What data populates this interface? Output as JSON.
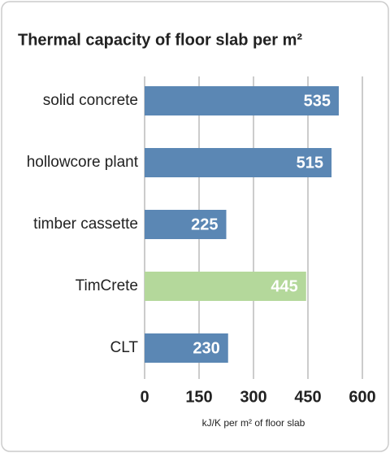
{
  "chart_data": {
    "type": "hbar",
    "title": "Thermal capacity of floor slab per m²",
    "categories": [
      "solid concrete",
      "hollowcore plant",
      "timber cassette",
      "TimCrete",
      "CLT"
    ],
    "values": [
      535,
      515,
      225,
      445,
      230
    ],
    "colors": [
      "#5b87b4",
      "#5b87b4",
      "#5b87b4",
      "#b4d89b",
      "#5b87b4"
    ],
    "xlim": [
      0,
      600
    ],
    "xticks": [
      0,
      150,
      300,
      450,
      600
    ],
    "xlabel": "kJ/K per m² of floor slab",
    "grid": true
  }
}
